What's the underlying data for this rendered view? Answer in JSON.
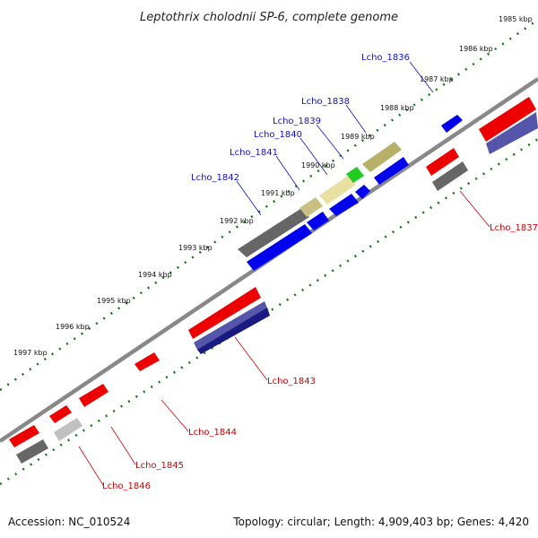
{
  "title": "Leptothrix cholodnii SP-6, complete genome",
  "footer": {
    "accession": "Accession: NC_010524",
    "topology": "Topology: circular; Length: 4,909,403 bp; Genes: 4,420"
  },
  "kbp_ticks": [
    "1985 kbp",
    "1986 kbp",
    "1987 kbp",
    "1988 kbp",
    "1989 kbp",
    "1990 kbp",
    "1991 kbp",
    "1992 kbp",
    "1993 kbp",
    "1994 kbp",
    "1995 kbp",
    "1996 kbp",
    "1997 kbp"
  ],
  "gene_labels_forward": [
    "Lcho_1836",
    "Lcho_1838",
    "Lcho_1839",
    "Lcho_1840",
    "Lcho_1841",
    "Lcho_1842"
  ],
  "gene_labels_reverse": [
    "Lcho_1837",
    "Lcho_1843",
    "Lcho_1844",
    "Lcho_1845",
    "Lcho_1846"
  ],
  "colors": {
    "forward_label": "#1010c8",
    "reverse_label": "#cc0000",
    "red_gene": "#ee0000",
    "blue_gene": "#0000ee",
    "gray_gene": "#666666",
    "khaki_gene": "#c8c080",
    "green_gene": "#22cc22",
    "purple_gene": "#5555aa",
    "navy_gene": "#1a1a80",
    "tick_dots": "#117711",
    "backbone": "#888888"
  }
}
